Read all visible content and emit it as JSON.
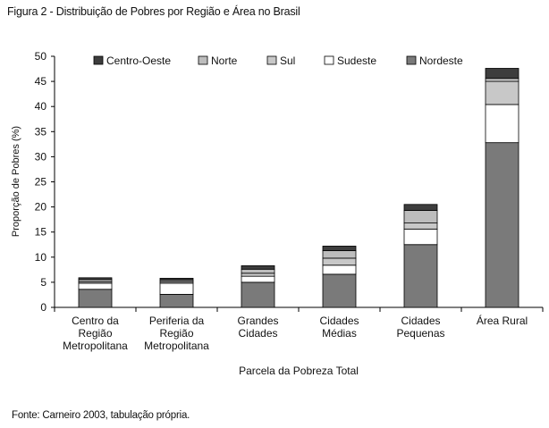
{
  "figure_title": "Figura 2 - Distribuição de Pobres por Região e Área no Brasil",
  "source_note": "Fonte: Carneiro 2003, tabulação própria.",
  "chart_data": {
    "type": "bar",
    "stacked": true,
    "title": "",
    "xlabel": "Parcela da Pobreza Total",
    "ylabel": "Proporção de Pobres (%)",
    "ylim": [
      0,
      50
    ],
    "yticks": [
      0,
      5,
      10,
      15,
      20,
      25,
      30,
      35,
      40,
      45,
      50
    ],
    "grid": false,
    "legend_position": "top",
    "categories": [
      [
        "Centro da",
        "Região",
        "Metropolitana"
      ],
      [
        "Periferia da",
        "Região",
        "Metropolitana"
      ],
      [
        "Grandes",
        "Cidades"
      ],
      [
        "Cidades",
        "Médias"
      ],
      [
        "Cidades",
        "Pequenas"
      ],
      [
        "Área Rural"
      ]
    ],
    "series": [
      {
        "name": "Nordeste",
        "color": "#7a7a7a",
        "values": [
          3.6,
          2.6,
          5.0,
          6.6,
          12.5,
          32.8
        ]
      },
      {
        "name": "Sudeste",
        "color": "#ffffff",
        "values": [
          1.2,
          2.2,
          1.2,
          1.8,
          3.1,
          7.6
        ]
      },
      {
        "name": "Sul",
        "color": "#c8c8c8",
        "values": [
          0.3,
          0.3,
          0.6,
          1.4,
          1.2,
          4.6
        ]
      },
      {
        "name": "Norte",
        "color": "#bdbdbd",
        "values": [
          0.4,
          0.3,
          0.8,
          1.5,
          2.5,
          0.6
        ]
      },
      {
        "name": "Centro-Oeste",
        "color": "#3d3d3d",
        "values": [
          0.4,
          0.4,
          0.7,
          0.9,
          1.2,
          2.0
        ]
      }
    ],
    "legend_order": [
      "Centro-Oeste",
      "Norte",
      "Sul",
      "Sudeste",
      "Nordeste"
    ]
  }
}
